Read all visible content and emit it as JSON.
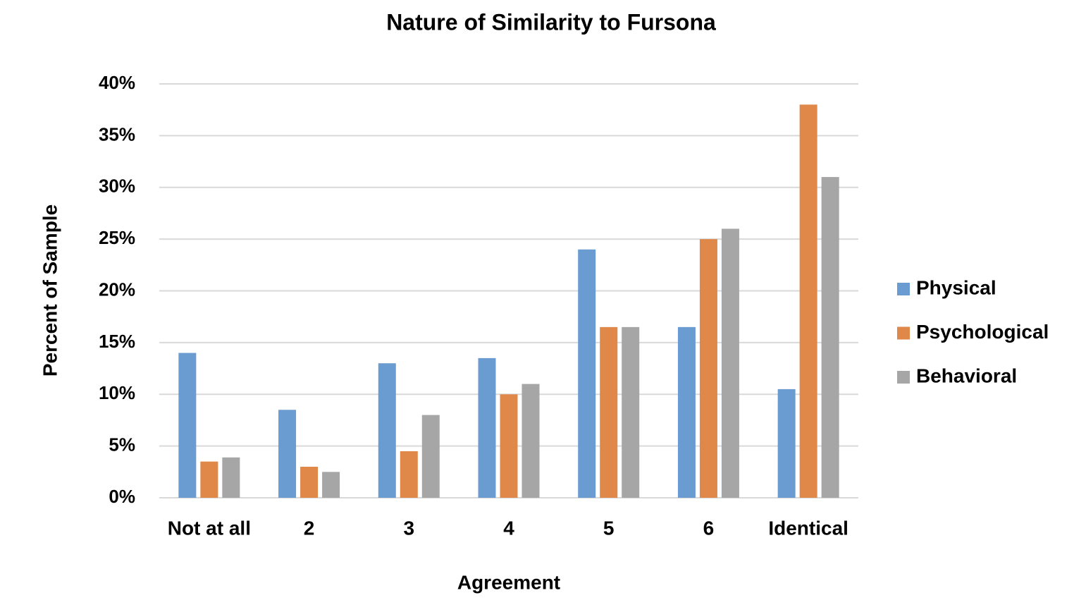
{
  "chart_data": {
    "type": "bar",
    "title": "Nature of Similarity to Fursona",
    "x_label": "Agreement",
    "y_label": "Percent of Sample",
    "categories": [
      "Not at all",
      "2",
      "3",
      "4",
      "5",
      "6",
      "Identical"
    ],
    "series": [
      {
        "name": "Physical",
        "color": "#6a9bd1",
        "values": [
          14,
          8.5,
          13,
          13.5,
          24,
          16.5,
          10.5
        ]
      },
      {
        "name": "Psychological",
        "color": "#e0874a",
        "values": [
          3.5,
          3,
          4.5,
          10,
          16.5,
          25,
          38
        ]
      },
      {
        "name": "Behavioral",
        "color": "#a6a6a6",
        "values": [
          3.9,
          2.5,
          8,
          11,
          16.5,
          26,
          31
        ]
      }
    ],
    "ylim": [
      0,
      40
    ],
    "yticks": [
      {
        "value": 0,
        "label": "0%"
      },
      {
        "value": 5,
        "label": "5%"
      },
      {
        "value": 10,
        "label": "10%"
      },
      {
        "value": 15,
        "label": "15%"
      },
      {
        "value": 20,
        "label": "20%"
      },
      {
        "value": 25,
        "label": "25%"
      },
      {
        "value": 30,
        "label": "30%"
      },
      {
        "value": 35,
        "label": "35%"
      },
      {
        "value": 40,
        "label": "40%"
      }
    ],
    "grid": true,
    "legend": "right"
  }
}
